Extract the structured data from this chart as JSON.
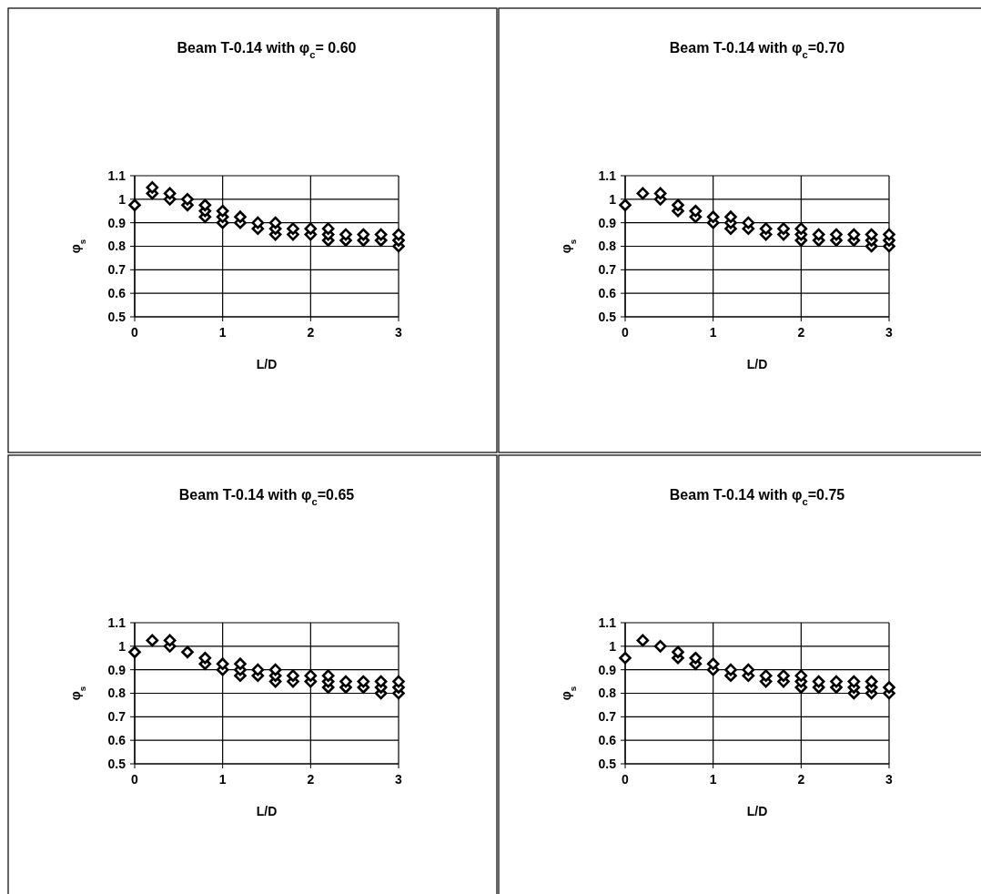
{
  "chart_data": [
    {
      "type": "scatter",
      "title": "Beam T-0.14 with φ$_{c}$= 0.60",
      "xlabel": "L/D",
      "ylabel": "φ$_{s}$",
      "xlim": [
        0,
        3
      ],
      "ylim": [
        0.5,
        1.1
      ],
      "xticks": [
        0,
        1,
        2,
        3
      ],
      "yticks": [
        0.5,
        0.6,
        0.7,
        0.8,
        0.9,
        1,
        1.1
      ],
      "grid": true,
      "marker": "diamond",
      "series": [
        {
          "color": "#000000",
          "x": [
            0,
            0.2,
            0.2,
            0.4,
            0.4,
            0.6,
            0.6,
            0.8,
            0.8,
            0.8,
            1.0,
            1.0,
            1.0,
            1.2,
            1.2,
            1.4,
            1.4,
            1.6,
            1.6,
            1.6,
            1.8,
            1.8,
            2.0,
            2.0,
            2.2,
            2.2,
            2.2,
            2.4,
            2.4,
            2.6,
            2.6,
            2.8,
            2.8,
            3.0,
            3.0,
            3.0
          ],
          "values": [
            0.975,
            1.025,
            1.05,
            1.0,
            1.025,
            0.975,
            1.0,
            0.925,
            0.95,
            0.975,
            0.9,
            0.925,
            0.95,
            0.9,
            0.925,
            0.875,
            0.9,
            0.85,
            0.875,
            0.9,
            0.85,
            0.875,
            0.85,
            0.875,
            0.825,
            0.85,
            0.875,
            0.825,
            0.85,
            0.825,
            0.85,
            0.825,
            0.85,
            0.8,
            0.825,
            0.85
          ]
        }
      ]
    },
    {
      "type": "scatter",
      "title": "Beam T-0.14 with φ$_{c}$=0.70",
      "xlabel": "L/D",
      "ylabel": "φ$_{s}$",
      "xlim": [
        0,
        3
      ],
      "ylim": [
        0.5,
        1.1
      ],
      "xticks": [
        0,
        1,
        2,
        3
      ],
      "yticks": [
        0.5,
        0.6,
        0.7,
        0.8,
        0.9,
        1,
        1.1
      ],
      "grid": true,
      "marker": "diamond",
      "series": [
        {
          "color": "#000000",
          "x": [
            0,
            0.2,
            0.4,
            0.4,
            0.6,
            0.6,
            0.8,
            0.8,
            1.0,
            1.0,
            1.2,
            1.2,
            1.2,
            1.4,
            1.4,
            1.6,
            1.6,
            1.8,
            1.8,
            2.0,
            2.0,
            2.0,
            2.2,
            2.2,
            2.4,
            2.4,
            2.6,
            2.6,
            2.8,
            2.8,
            2.8,
            3.0,
            3.0,
            3.0
          ],
          "values": [
            0.975,
            1.025,
            1.0,
            1.025,
            0.95,
            0.975,
            0.925,
            0.95,
            0.9,
            0.925,
            0.875,
            0.9,
            0.925,
            0.875,
            0.9,
            0.85,
            0.875,
            0.85,
            0.875,
            0.825,
            0.85,
            0.875,
            0.825,
            0.85,
            0.825,
            0.85,
            0.825,
            0.85,
            0.8,
            0.825,
            0.85,
            0.8,
            0.825,
            0.85
          ]
        }
      ]
    },
    {
      "type": "scatter",
      "title": "Beam T-0.14 with φ$_{c}$=0.65",
      "xlabel": "L/D",
      "ylabel": "φ$_{s}$",
      "xlim": [
        0,
        3
      ],
      "ylim": [
        0.5,
        1.1
      ],
      "xticks": [
        0,
        1,
        2,
        3
      ],
      "yticks": [
        0.5,
        0.6,
        0.7,
        0.8,
        0.9,
        1,
        1.1
      ],
      "grid": true,
      "marker": "diamond",
      "series": [
        {
          "color": "#000000",
          "x": [
            0,
            0.2,
            0.4,
            0.4,
            0.6,
            0.8,
            0.8,
            1.0,
            1.0,
            1.2,
            1.2,
            1.2,
            1.4,
            1.4,
            1.6,
            1.6,
            1.6,
            1.8,
            1.8,
            2.0,
            2.0,
            2.2,
            2.2,
            2.2,
            2.4,
            2.4,
            2.6,
            2.6,
            2.8,
            2.8,
            2.8,
            3.0,
            3.0,
            3.0
          ],
          "values": [
            0.975,
            1.025,
            1.0,
            1.025,
            0.975,
            0.925,
            0.95,
            0.9,
            0.925,
            0.875,
            0.9,
            0.925,
            0.875,
            0.9,
            0.85,
            0.875,
            0.9,
            0.85,
            0.875,
            0.85,
            0.875,
            0.825,
            0.85,
            0.875,
            0.825,
            0.85,
            0.825,
            0.85,
            0.8,
            0.825,
            0.85,
            0.8,
            0.825,
            0.85
          ]
        }
      ]
    },
    {
      "type": "scatter",
      "title": "Beam T-0.14 with φ$_{c}$=0.75",
      "xlabel": "L/D",
      "ylabel": "φ$_{s}$",
      "xlim": [
        0,
        3
      ],
      "ylim": [
        0.5,
        1.1
      ],
      "xticks": [
        0,
        1,
        2,
        3
      ],
      "yticks": [
        0.5,
        0.6,
        0.7,
        0.8,
        0.9,
        1,
        1.1
      ],
      "grid": true,
      "marker": "diamond",
      "series": [
        {
          "color": "#000000",
          "x": [
            0,
            0.2,
            0.4,
            0.6,
            0.6,
            0.8,
            0.8,
            1.0,
            1.0,
            1.2,
            1.2,
            1.4,
            1.4,
            1.6,
            1.6,
            1.8,
            1.8,
            2.0,
            2.0,
            2.0,
            2.2,
            2.2,
            2.4,
            2.4,
            2.6,
            2.6,
            2.6,
            2.8,
            2.8,
            2.8,
            3.0,
            3.0
          ],
          "values": [
            0.95,
            1.025,
            1.0,
            0.95,
            0.975,
            0.925,
            0.95,
            0.9,
            0.925,
            0.875,
            0.9,
            0.875,
            0.9,
            0.85,
            0.875,
            0.85,
            0.875,
            0.825,
            0.85,
            0.875,
            0.825,
            0.85,
            0.825,
            0.85,
            0.8,
            0.825,
            0.85,
            0.8,
            0.825,
            0.85,
            0.8,
            0.825
          ]
        }
      ]
    }
  ]
}
